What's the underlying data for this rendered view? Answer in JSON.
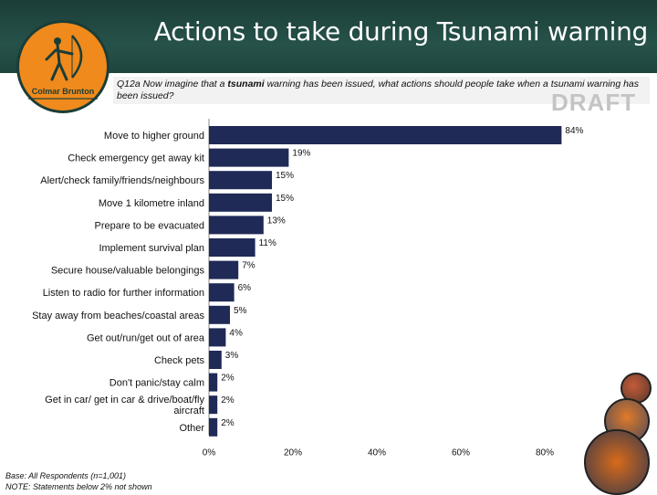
{
  "header": {
    "title": "Actions to take during Tsunami warning",
    "logo_text": "Colmar Brunton"
  },
  "question": {
    "prefix": "Q12a Now imagine that a ",
    "emphasis": "tsunami",
    "suffix": " warning has been issued, what actions should people take when a tsunami warning has been issued?"
  },
  "watermark": "DRAFT",
  "footnotes": [
    "Base: All Respondents (n=1,001)",
    "NOTE: Statements below 2% not shown"
  ],
  "colors": {
    "header_bg": "#1e453e",
    "bar": "#1f2a56",
    "logo": "#f08a1c"
  },
  "chart_data": {
    "type": "bar",
    "orientation": "horizontal",
    "categories": [
      "Move to higher ground",
      "Check emergency get away kit",
      "Alert/check family/friends/neighbours",
      "Move 1 kilometre inland",
      "Prepare to be evacuated",
      "Implement survival plan",
      "Secure house/valuable belongings",
      "Listen to radio for further information",
      "Stay away from beaches/coastal areas",
      "Get out/run/get out of area",
      "Check pets",
      "Don't panic/stay calm",
      "Get in car/ get in car & drive/boat/fly aircraft",
      "Other"
    ],
    "values": [
      84,
      19,
      15,
      15,
      13,
      11,
      7,
      6,
      5,
      4,
      3,
      2,
      2,
      2
    ],
    "value_labels": [
      "84%",
      "19%",
      "15%",
      "15%",
      "13%",
      "11%",
      "7%",
      "6%",
      "5%",
      "4%",
      "3%",
      "2%",
      "2%",
      "2%"
    ],
    "xticks": [
      "0%",
      "20%",
      "40%",
      "60%",
      "80%"
    ],
    "xtick_values": [
      0,
      20,
      40,
      60,
      80
    ],
    "xlim": [
      0,
      86
    ],
    "grid": false,
    "legend": "none"
  }
}
